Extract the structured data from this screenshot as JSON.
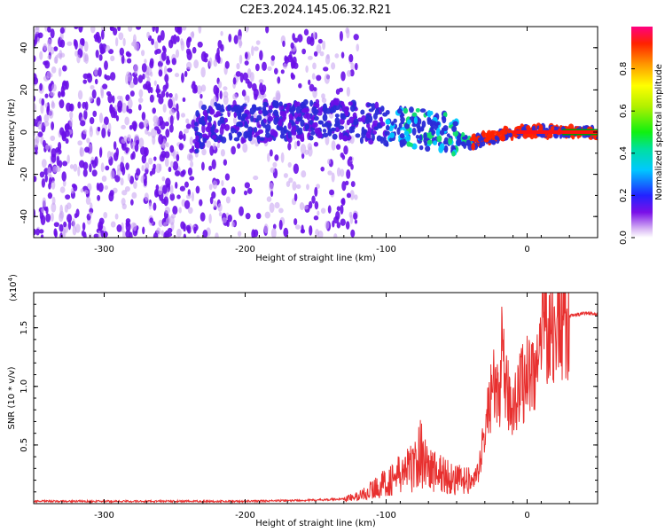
{
  "title": "C2E3.2024.145.06.32.R21",
  "colors": {
    "snr_line": "#e8302f",
    "ridge_blue": "#2a2bd8",
    "dot_purple": "#6a0fe8",
    "dot_light": "#c9a6f2",
    "axis": "#000000"
  },
  "chart_data": [
    {
      "type": "heatmap",
      "title": "",
      "xlabel": "Height of straight line (km)",
      "ylabel": "Frequency (Hz)",
      "xlim": [
        -350,
        50
      ],
      "ylim": [
        -50,
        50
      ],
      "x_ticks": [
        -300,
        -200,
        -100,
        0
      ],
      "x_tick_labels": [
        "-300",
        "-200",
        "-100",
        "0"
      ],
      "y_ticks": [
        -40,
        -20,
        0,
        20,
        40
      ],
      "y_tick_labels": [
        "-40",
        "-20",
        "0",
        "20",
        "40"
      ],
      "ridge": {
        "x": [
          -230,
          -200,
          -170,
          -150,
          -120,
          -100,
          -80,
          -60,
          -45,
          -40,
          -30,
          -20,
          -10,
          0,
          10,
          20,
          30,
          50
        ],
        "freq": [
          5,
          4,
          5,
          6,
          5,
          3,
          2,
          0,
          -4,
          -5,
          -3,
          -2,
          0,
          0.5,
          0.5,
          0.3,
          0,
          0
        ]
      },
      "colorbar": {
        "label": "Normalized spectral amplitude",
        "range": [
          0,
          1
        ],
        "ticks": [
          0.0,
          0.2,
          0.4,
          0.6,
          0.8
        ],
        "tick_labels": [
          "0.0",
          "0.2",
          "0.4",
          "0.6",
          "0.8"
        ]
      }
    },
    {
      "type": "line",
      "title": "",
      "xlabel": "Height of straight line (km)",
      "ylabel": "SNR (10 * v/v)",
      "y_multiplier_label": "(x10",
      "y_multiplier_exponent": "4",
      "xlim": [
        -350,
        50
      ],
      "ylim": [
        0,
        1.8
      ],
      "x_ticks": [
        -300,
        -200,
        -100,
        0
      ],
      "x_tick_labels": [
        "-300",
        "-200",
        "-100",
        "0"
      ],
      "y_ticks": [
        0.5,
        1.0,
        1.5
      ],
      "y_tick_labels": [
        "0.5",
        "1.0",
        "1.5"
      ],
      "series": [
        {
          "x": [
            -350,
            -300,
            -250,
            -200,
            -150,
            -130,
            -120,
            -110,
            -100,
            -90,
            -80,
            -75,
            -70,
            -60,
            -50,
            -40,
            -35,
            -30,
            -25,
            -20,
            -18,
            -15,
            -10,
            -5,
            0,
            5,
            10,
            12,
            15,
            20,
            25,
            30,
            40,
            50
          ],
          "values": [
            0.02,
            0.02,
            0.02,
            0.02,
            0.03,
            0.04,
            0.06,
            0.12,
            0.18,
            0.25,
            0.32,
            0.45,
            0.3,
            0.25,
            0.2,
            0.18,
            0.25,
            0.6,
            1.0,
            0.9,
            1.25,
            0.95,
            0.85,
            1.0,
            1.1,
            1.15,
            1.2,
            1.8,
            1.45,
            1.5,
            1.55,
            1.6,
            1.62,
            1.62
          ]
        }
      ]
    }
  ]
}
